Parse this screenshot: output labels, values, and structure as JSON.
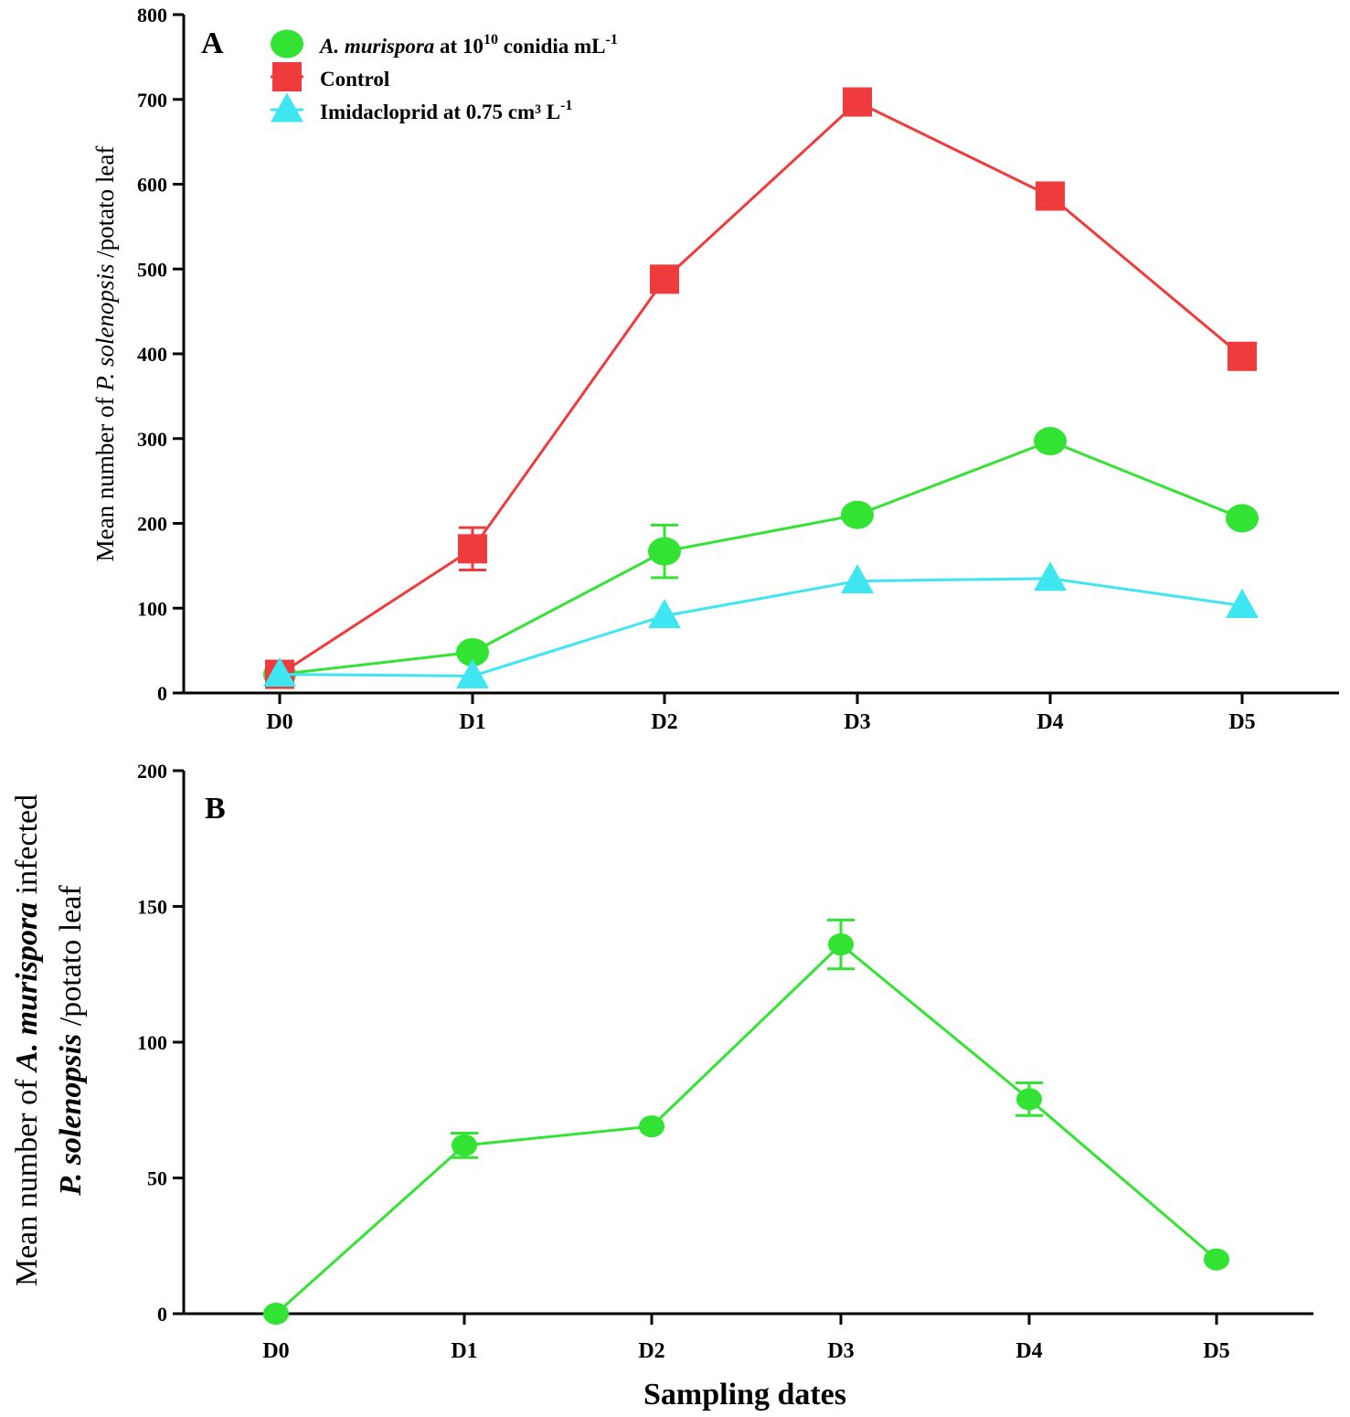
{
  "chart_data": [
    {
      "panel": "A",
      "type": "line",
      "categories": [
        "D0",
        "D1",
        "D2",
        "D3",
        "D4",
        "D5"
      ],
      "ylim": [
        0,
        800
      ],
      "yticks": [
        0,
        100,
        200,
        300,
        400,
        500,
        600,
        700,
        800
      ],
      "ylabel": {
        "pre": "Mean number of ",
        "italic": "P. solenopsis",
        "post": " /potato leaf"
      },
      "xlabel": "",
      "series": [
        {
          "key": "amurispora",
          "legend": {
            "italic": "A. murispora",
            "text": " at 10",
            "sup": "10",
            "tail": " conidia mL",
            "sup2": "-1"
          },
          "marker": "circle",
          "color": "#33e333",
          "values": [
            22,
            48,
            167,
            210,
            297,
            206
          ],
          "errors": [
            0,
            0,
            31,
            0,
            0,
            0
          ]
        },
        {
          "key": "control",
          "legend": {
            "text": "Control"
          },
          "marker": "square",
          "color": "#ef3b3b",
          "values": [
            22,
            170,
            488,
            697,
            586,
            397
          ],
          "errors": [
            0,
            25,
            0,
            0,
            0,
            0
          ]
        },
        {
          "key": "imidacloprid",
          "legend": {
            "text": "Imidacloprid at 0.75 cm³ L",
            "sup": "-1"
          },
          "marker": "triangle",
          "color": "#3ee6f2",
          "values": [
            22,
            20,
            91,
            132,
            135,
            103
          ],
          "errors": [
            0,
            0,
            0,
            0,
            0,
            0
          ]
        }
      ]
    },
    {
      "panel": "B",
      "type": "line",
      "categories": [
        "D0",
        "D1",
        "D2",
        "D3",
        "D4",
        "D5"
      ],
      "ylim": [
        0,
        200
      ],
      "yticks": [
        0,
        50,
        100,
        150,
        200
      ],
      "ylabel": {
        "line1_pre": "Mean number of ",
        "line1_italic": "A. murispora",
        "line1_post": "  infected",
        "line2_italic": "P. solenopsis",
        "line2_post": " /potato leaf"
      },
      "xlabel": "Sampling dates",
      "series": [
        {
          "key": "infected",
          "marker": "circle",
          "color": "#33e333",
          "values": [
            0,
            62,
            69,
            136,
            79,
            20
          ],
          "errors": [
            0,
            4.5,
            0,
            9,
            6,
            0
          ]
        }
      ]
    }
  ]
}
